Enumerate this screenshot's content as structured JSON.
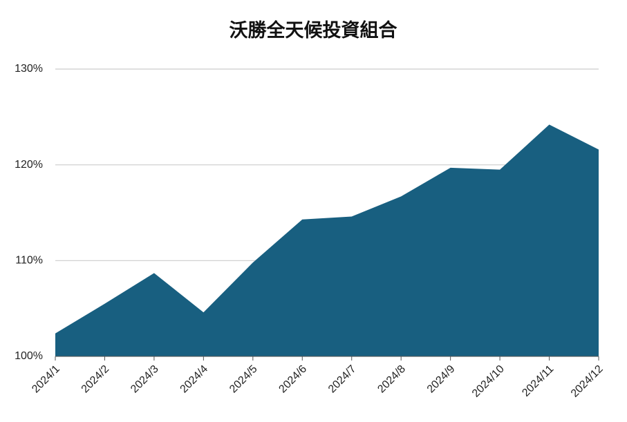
{
  "chart_data": {
    "type": "area",
    "title": "沃勝全天候投資組合",
    "categories": [
      "2024/1",
      "2024/2",
      "2024/3",
      "2024/4",
      "2024/5",
      "2024/6",
      "2024/7",
      "2024/8",
      "2024/9",
      "2024/10",
      "2024/11",
      "2024/12"
    ],
    "values": [
      102.4,
      105.5,
      108.7,
      104.6,
      109.8,
      114.3,
      114.6,
      116.7,
      119.7,
      119.5,
      124.2,
      121.6
    ],
    "color": "#185f80",
    "ylim": [
      100,
      130
    ],
    "yticks": [
      {
        "value": 100,
        "label": "100%"
      },
      {
        "value": 110,
        "label": "110%"
      },
      {
        "value": 120,
        "label": "120%"
      },
      {
        "value": 130,
        "label": "130%"
      }
    ],
    "grid": true
  }
}
